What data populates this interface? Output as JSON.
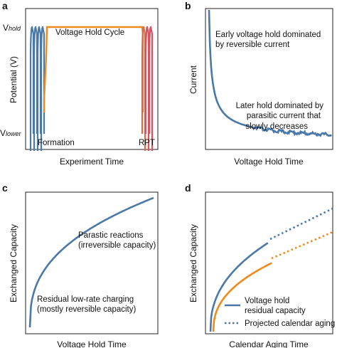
{
  "colors": {
    "formation": "#4a78a8",
    "voltage_hold": "#f08a1c",
    "rpt": "#d9525e",
    "hold_fade": "#e06a40",
    "curve_blue": "#4a78a8",
    "curve_orange": "#f08a1c"
  },
  "chart_data": [
    {
      "panel": "a",
      "type": "line",
      "xlabel": "Experiment Time",
      "ylabel": "Potential (V)",
      "yticks": [
        "V_hold",
        "V_lower"
      ],
      "ytick_labels": {
        "hold_main": "V",
        "hold_sub": "hold",
        "lower_main": "V",
        "lower_sub": "lower"
      },
      "annotations": {
        "cycle": "Voltage Hold Cycle",
        "formation": "Formation",
        "rpt": "RPT"
      },
      "series": [
        {
          "name": "Formation",
          "segment": "formation cycles"
        },
        {
          "name": "Voltage Hold Cycle",
          "segment": "hold at V_hold"
        },
        {
          "name": "RPT",
          "segment": "reference performance test cycles"
        }
      ]
    },
    {
      "panel": "b",
      "type": "line",
      "xlabel": "Voltage Hold Time",
      "ylabel": "Current",
      "annotations": {
        "early_1": "Early voltage hold dominated",
        "early_2": "by reversible current",
        "late_1": "Later hold dominated by",
        "late_2": "parasitic current that",
        "late_3": "slowly decreases"
      },
      "x": [
        0.0,
        0.02,
        0.05,
        0.1,
        0.15,
        0.2,
        0.3,
        0.4,
        0.5,
        0.6,
        0.7,
        0.8,
        0.9,
        1.0
      ],
      "y": [
        1.0,
        0.72,
        0.5,
        0.35,
        0.27,
        0.22,
        0.16,
        0.12,
        0.09,
        0.07,
        0.055,
        0.045,
        0.035,
        0.03
      ]
    },
    {
      "panel": "c",
      "type": "line",
      "xlabel": "Voltage Hold Time",
      "ylabel": "Exchanged Capacity",
      "annotations": {
        "parasitic_1": "Parastic reactions",
        "parasitic_2": "(irreversible capacity)",
        "residual_1": "Residual low-rate charging",
        "residual_2": "(mostly reversible capacity)"
      },
      "x": [
        0.0,
        0.02,
        0.05,
        0.1,
        0.2,
        0.3,
        0.4,
        0.5,
        0.6,
        0.7,
        0.8,
        0.9,
        1.0
      ],
      "y": [
        0.0,
        0.3,
        0.45,
        0.55,
        0.65,
        0.72,
        0.78,
        0.83,
        0.87,
        0.91,
        0.94,
        0.97,
        1.0
      ]
    },
    {
      "panel": "d",
      "type": "line",
      "xlabel": "Calendar Aging Time",
      "ylabel": "Exchanged Capacity",
      "legend": [
        "Voltage hold",
        "residual capacity",
        "Projected calendar aging"
      ],
      "series": [
        {
          "name": "Voltage hold residual capacity (upper)",
          "x": [
            0.0,
            0.02,
            0.05,
            0.1,
            0.2,
            0.3,
            0.4,
            0.5
          ],
          "y": [
            0.0,
            0.25,
            0.38,
            0.47,
            0.56,
            0.62,
            0.67,
            0.71
          ]
        },
        {
          "name": "Voltage hold residual capacity (lower)",
          "x": [
            0.0,
            0.02,
            0.05,
            0.1,
            0.2,
            0.3,
            0.4,
            0.5
          ],
          "y": [
            0.0,
            0.18,
            0.28,
            0.35,
            0.42,
            0.46,
            0.49,
            0.52
          ]
        },
        {
          "name": "Projected calendar aging (upper)",
          "x": [
            0.5,
            0.6,
            0.7,
            0.8,
            0.9,
            1.0
          ],
          "y": [
            0.71,
            0.75,
            0.79,
            0.83,
            0.87,
            0.91
          ]
        },
        {
          "name": "Projected calendar aging (lower)",
          "x": [
            0.5,
            0.6,
            0.7,
            0.8,
            0.9,
            1.0
          ],
          "y": [
            0.52,
            0.56,
            0.6,
            0.64,
            0.68,
            0.72
          ]
        }
      ]
    }
  ]
}
